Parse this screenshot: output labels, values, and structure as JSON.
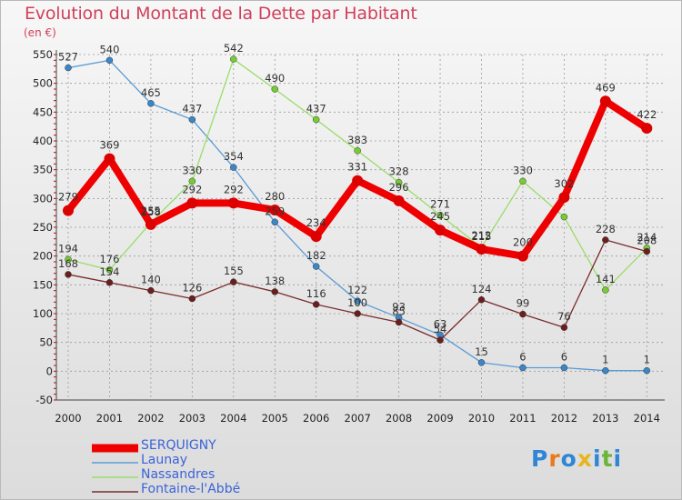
{
  "title": "Evolution du Montant de la Dette par Habitant",
  "subtitle": "(en €)",
  "logo": [
    "P",
    "r",
    "o",
    "x",
    "i",
    "t",
    "i"
  ],
  "colors": {
    "title": "#d0405a",
    "grid": "#9a9a9a",
    "axis_text": "#222222",
    "value_text": "#333333",
    "legend_text": "#3b63d8",
    "logo": [
      "#2f86d6",
      "#e87b1c",
      "#2f86d6",
      "#e8b51c",
      "#2f86d6",
      "#6ab53a",
      "#2f86d6"
    ]
  },
  "chart_data": {
    "type": "line",
    "title": "Evolution du Montant de la Dette par Habitant",
    "ylabel": "(en €)",
    "xlabel": "",
    "ylim": [
      -50,
      550
    ],
    "yticks": [
      -50,
      0,
      50,
      100,
      150,
      200,
      250,
      300,
      350,
      400,
      450,
      500,
      550
    ],
    "grid": true,
    "legend_position": "bottom-left",
    "categories": [
      "2000",
      "2001",
      "2002",
      "2003",
      "2004",
      "2005",
      "2006",
      "2007",
      "2008",
      "2009",
      "2010",
      "2011",
      "2012",
      "2013",
      "2014"
    ],
    "series": [
      {
        "name": "SERQUIGNY",
        "color": "#ee0000",
        "marker": "#dd0000",
        "width": 8,
        "markerSize": 6,
        "values": [
          279,
          369,
          255,
          292,
          292,
          280,
          234,
          331,
          296,
          245,
          212,
          200,
          302,
          469,
          422
        ],
        "labels": [
          "279",
          "369",
          "255",
          "292",
          "292",
          "280",
          "234",
          "331",
          "296",
          "245",
          "212",
          "200",
          "302",
          "469",
          "422"
        ]
      },
      {
        "name": "Launay",
        "color": "#5b9bd5",
        "marker": "#3a86c8",
        "width": 1.3,
        "markerSize": 3.5,
        "values": [
          527,
          540,
          465,
          437,
          354,
          259,
          182,
          122,
          93,
          63,
          15,
          6,
          6,
          1,
          1
        ],
        "labels": [
          "527",
          "540",
          "465",
          "437",
          "354",
          "259",
          "182",
          "122",
          "93",
          "63",
          "15",
          "6",
          "6",
          "1",
          "1"
        ]
      },
      {
        "name": "Nassandres",
        "color": "#99dd66",
        "marker": "#77cc33",
        "width": 1.3,
        "markerSize": 3.5,
        "values": [
          194,
          176,
          258,
          330,
          542,
          490,
          437,
          383,
          328,
          271,
          215,
          330,
          268,
          141,
          214
        ],
        "labels": [
          "194",
          "176",
          "258",
          "330",
          "542",
          "490",
          "437",
          "383",
          "328",
          "271",
          "215",
          "330",
          "",
          "141",
          "214"
        ]
      },
      {
        "name": "Fontaine-l'Abbé",
        "color": "#7a2c2c",
        "marker": "#6a1e1e",
        "width": 1.3,
        "markerSize": 3.5,
        "values": [
          168,
          154,
          140,
          126,
          155,
          138,
          116,
          100,
          85,
          54,
          124,
          99,
          76,
          228,
          208
        ],
        "labels": [
          "168",
          "154",
          "140",
          "126",
          "155",
          "138",
          "116",
          "100",
          "85",
          "54",
          "124",
          "99",
          "76",
          "228",
          "208"
        ]
      }
    ]
  }
}
